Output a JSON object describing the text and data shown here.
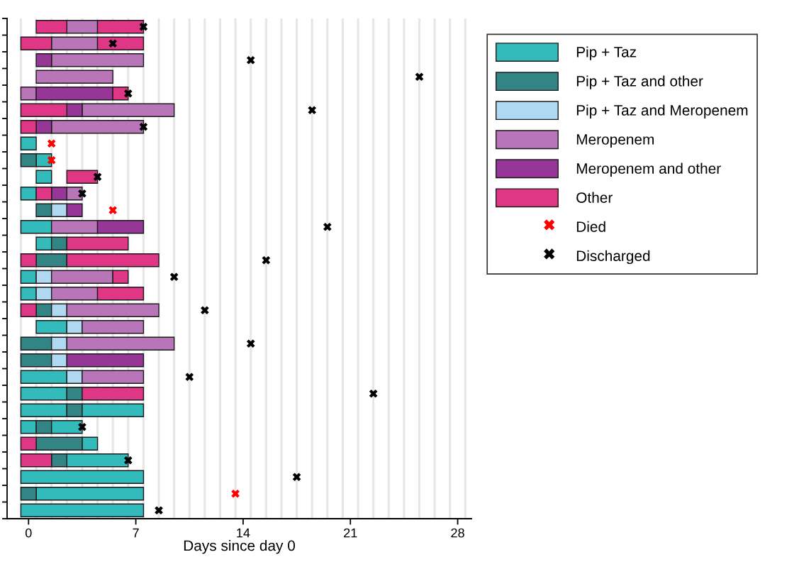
{
  "chart_data": {
    "type": "bar",
    "orientation": "horizontal",
    "xlabel": "Days since day 0",
    "categories": [
      null,
      null,
      null,
      null,
      null,
      null,
      null,
      null,
      null,
      null,
      null,
      null,
      null,
      null,
      null,
      null,
      null,
      null,
      null,
      null,
      null,
      null,
      null,
      null,
      null,
      null,
      null,
      null,
      null,
      null
    ],
    "xlim": [
      -1.4,
      28.9
    ],
    "xticks": [
      0,
      7,
      14,
      21,
      28
    ],
    "legend": "top right",
    "series": [
      {
        "name": "Pip + Taz",
        "color": "#33bbbb",
        "base": [
          null,
          null,
          null,
          null,
          null,
          null,
          null,
          -0.5,
          0.5,
          0.5,
          -0.5,
          null,
          -0.5,
          0.5,
          null,
          -0.5,
          -0.5,
          null,
          0.5,
          null,
          null,
          -0.5,
          -0.5,
          -0.5,
          -0.5,
          3.5,
          2.5,
          -0.5,
          0.5,
          -0.5
        ],
        "values": [
          null,
          null,
          null,
          null,
          null,
          null,
          null,
          1,
          1,
          1,
          1,
          null,
          2,
          1,
          null,
          1,
          1,
          null,
          2,
          null,
          null,
          3,
          3,
          3,
          1,
          1,
          4,
          8,
          7,
          8
        ]
      },
      {
        "name": "Pip + Taz and other",
        "color": "#338484",
        "base": [
          null,
          null,
          null,
          null,
          null,
          null,
          null,
          null,
          -0.5,
          null,
          null,
          0.5,
          null,
          1.5,
          0.5,
          null,
          null,
          0.5,
          null,
          -0.5,
          -0.5,
          null,
          2.5,
          2.5,
          0.5,
          0.5,
          1.5,
          null,
          -0.5,
          null
        ],
        "values": [
          null,
          null,
          null,
          null,
          null,
          null,
          null,
          null,
          1,
          null,
          null,
          1,
          null,
          1,
          2,
          null,
          null,
          1,
          null,
          2,
          2,
          null,
          1,
          1,
          1,
          3,
          1,
          null,
          1,
          null
        ]
      },
      {
        "name": "Pip + Taz and Meropenem",
        "color": "#b0d8f0",
        "base": [
          null,
          null,
          null,
          null,
          null,
          null,
          null,
          null,
          null,
          null,
          null,
          1.5,
          null,
          null,
          null,
          0.5,
          0.5,
          1.5,
          2.5,
          1.5,
          1.5,
          2.5,
          null,
          null,
          null,
          null,
          null,
          null,
          null,
          null
        ],
        "values": [
          null,
          null,
          null,
          null,
          null,
          null,
          null,
          null,
          null,
          null,
          null,
          1,
          null,
          null,
          null,
          1,
          1,
          1,
          1,
          1,
          1,
          1,
          null,
          null,
          null,
          null,
          null,
          null,
          null,
          null
        ]
      },
      {
        "name": "Meropenem",
        "color": "#b875b8",
        "base": [
          2.5,
          1.5,
          1.5,
          0.5,
          -0.5,
          3.5,
          1.5,
          null,
          null,
          null,
          2.5,
          null,
          1.5,
          null,
          null,
          1.5,
          1.5,
          2.5,
          3.5,
          2.5,
          null,
          3.5,
          null,
          null,
          null,
          null,
          null,
          null,
          null,
          null
        ],
        "values": [
          2,
          3,
          6,
          5,
          1,
          6,
          6,
          null,
          null,
          null,
          1,
          null,
          3,
          null,
          null,
          4,
          3,
          6,
          4,
          7,
          null,
          4,
          null,
          null,
          null,
          null,
          null,
          null,
          null,
          null
        ]
      },
      {
        "name": "Meropenem and other",
        "color": "#963696",
        "base": [
          null,
          null,
          0.5,
          null,
          0.5,
          2.5,
          0.5,
          null,
          null,
          null,
          1.5,
          2.5,
          4.5,
          null,
          null,
          null,
          null,
          null,
          null,
          null,
          2.5,
          null,
          null,
          null,
          null,
          null,
          null,
          null,
          null,
          null
        ],
        "values": [
          null,
          null,
          1,
          null,
          5,
          1,
          1,
          null,
          null,
          null,
          1,
          1,
          3,
          null,
          null,
          null,
          null,
          null,
          null,
          null,
          5,
          null,
          null,
          null,
          null,
          null,
          null,
          null,
          null,
          null
        ]
      },
      {
        "name": "Other",
        "color": "#e03686",
        "base": [
          0.5,
          -0.5,
          null,
          null,
          5.5,
          -0.5,
          -0.5,
          null,
          null,
          2.5,
          0.5,
          null,
          null,
          2.5,
          -0.5,
          5.5,
          4.5,
          -0.5,
          null,
          null,
          null,
          null,
          3.5,
          null,
          null,
          -0.5,
          -0.5,
          null,
          null,
          null
        ],
        "values": [
          2,
          2,
          null,
          null,
          1,
          3,
          1,
          null,
          null,
          2,
          1,
          null,
          null,
          4,
          1,
          1,
          3,
          1,
          null,
          null,
          null,
          null,
          4,
          null,
          null,
          1,
          2,
          null,
          null,
          null
        ]
      },
      {
        "name": "Died",
        "type": "scatter",
        "marker": "cross",
        "color": "#ff0000",
        "values": [
          null,
          null,
          null,
          null,
          null,
          null,
          null,
          1.5,
          1.5,
          null,
          null,
          5.5,
          null,
          null,
          null,
          null,
          null,
          null,
          null,
          null,
          null,
          null,
          null,
          null,
          null,
          null,
          null,
          null,
          13.5,
          null
        ]
      },
      {
        "name": "Discharged",
        "type": "scatter",
        "marker": "cross",
        "color": "#000000",
        "values": [
          7.5,
          5.5,
          14.5,
          25.5,
          6.5,
          18.5,
          7.5,
          null,
          null,
          4.5,
          3.5,
          null,
          19.5,
          null,
          15.5,
          9.5,
          null,
          11.5,
          null,
          14.5,
          null,
          10.5,
          22.5,
          null,
          3.5,
          null,
          6.5,
          17.5,
          null,
          8.5
        ]
      },
      {
        "color": "#33bbbb",
        "base": [
          null,
          null,
          null,
          null,
          null,
          null,
          null,
          null,
          null,
          null,
          null,
          null,
          null,
          null,
          null,
          null,
          null,
          null,
          null,
          null,
          null,
          null,
          null,
          3.5,
          1.5,
          null,
          null,
          null,
          null,
          null
        ],
        "values": [
          null,
          null,
          null,
          null,
          null,
          null,
          null,
          null,
          null,
          null,
          null,
          null,
          null,
          null,
          null,
          null,
          null,
          null,
          null,
          null,
          null,
          null,
          null,
          4,
          2,
          null,
          null,
          null,
          null,
          null
        ]
      },
      {
        "color": "#e03686",
        "base": [
          4.5,
          4.5,
          null,
          null,
          null,
          null,
          null,
          null,
          null,
          null,
          null,
          null,
          null,
          null,
          2.5,
          null,
          null,
          null,
          null,
          null,
          null,
          null,
          null,
          null,
          null,
          null,
          null,
          null,
          null,
          null
        ],
        "values": [
          3,
          3,
          null,
          null,
          null,
          null,
          null,
          null,
          null,
          null,
          null,
          null,
          null,
          null,
          6,
          null,
          null,
          null,
          null,
          null,
          null,
          null,
          null,
          null,
          null,
          null,
          null,
          null,
          null,
          null
        ]
      }
    ],
    "ref_lines": [
      {
        "axis": "x",
        "value": -0.5,
        "color": "#e6e6e6"
      },
      {
        "axis": "x",
        "value": 0.5,
        "color": "#e6e6e6"
      },
      {
        "axis": "x",
        "value": 1.5,
        "color": "#e6e6e6"
      },
      {
        "axis": "x",
        "value": 2.5,
        "color": "#e6e6e6"
      },
      {
        "axis": "x",
        "value": 3.5,
        "color": "#e6e6e6"
      },
      {
        "axis": "x",
        "value": 4.5,
        "color": "#e6e6e6"
      },
      {
        "axis": "x",
        "value": 5.5,
        "color": "#e6e6e6"
      },
      {
        "axis": "x",
        "value": 6.5,
        "color": "#e6e6e6"
      },
      {
        "axis": "x",
        "value": 7.5,
        "color": "#e6e6e6"
      },
      {
        "axis": "x",
        "value": 8.5,
        "color": "#e6e6e6"
      },
      {
        "axis": "x",
        "value": 9.5,
        "color": "#e6e6e6"
      },
      {
        "axis": "x",
        "value": 10.5,
        "color": "#e6e6e6"
      },
      {
        "axis": "x",
        "value": 11.5,
        "color": "#e6e6e6"
      },
      {
        "axis": "x",
        "value": 12.5,
        "color": "#e6e6e6"
      },
      {
        "axis": "x",
        "value": 13.5,
        "color": "#e6e6e6"
      },
      {
        "axis": "x",
        "value": 14.5,
        "color": "#e6e6e6"
      },
      {
        "axis": "x",
        "value": 15.5,
        "color": "#e6e6e6"
      },
      {
        "axis": "x",
        "value": 16.5,
        "color": "#e6e6e6"
      },
      {
        "axis": "x",
        "value": 17.5,
        "color": "#e6e6e6"
      },
      {
        "axis": "x",
        "value": 18.5,
        "color": "#e6e6e6"
      },
      {
        "axis": "x",
        "value": 19.5,
        "color": "#e6e6e6"
      },
      {
        "axis": "x",
        "value": 20.5,
        "color": "#e6e6e6"
      },
      {
        "axis": "x",
        "value": 21.5,
        "color": "#e6e6e6"
      },
      {
        "axis": "x",
        "value": 22.5,
        "color": "#e6e6e6"
      },
      {
        "axis": "x",
        "value": 23.5,
        "color": "#e6e6e6"
      },
      {
        "axis": "x",
        "value": 24.5,
        "color": "#e6e6e6"
      },
      {
        "axis": "x",
        "value": 25.5,
        "color": "#e6e6e6"
      },
      {
        "axis": "x",
        "value": 26.5,
        "color": "#e6e6e6"
      },
      {
        "axis": "x",
        "value": 27.5,
        "color": "#e6e6e6"
      },
      {
        "axis": "x",
        "value": 28.5,
        "color": "#e6e6e6"
      }
    ]
  }
}
